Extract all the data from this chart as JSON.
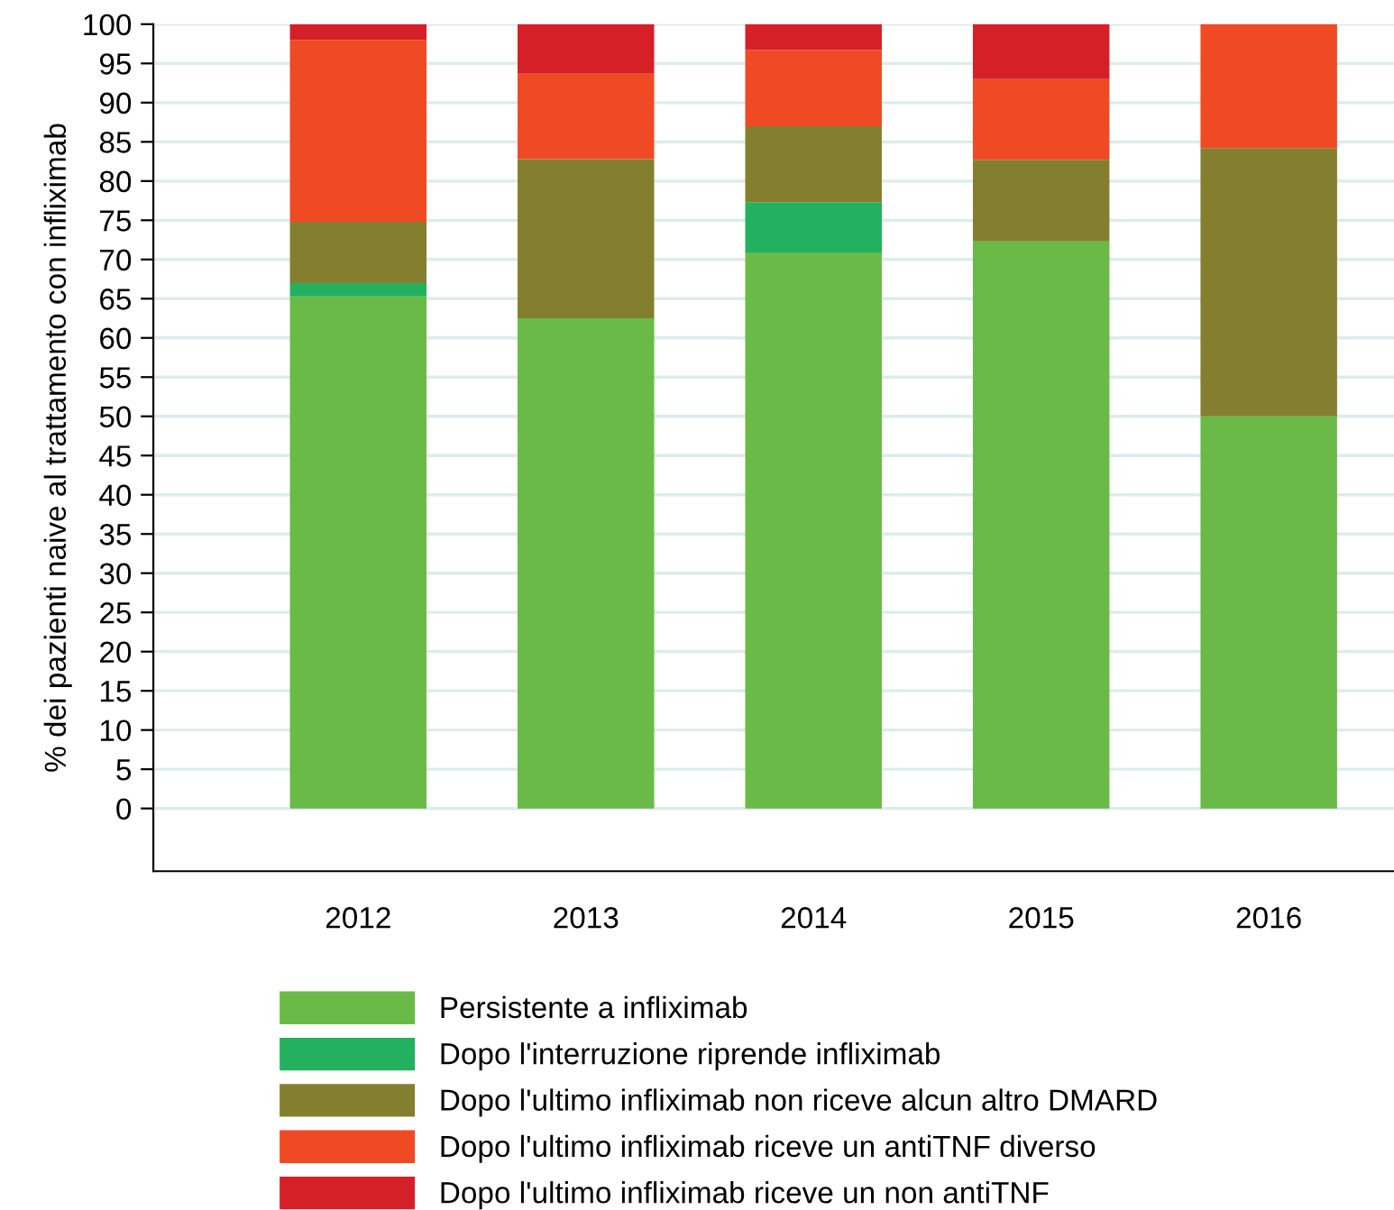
{
  "chart_data": {
    "type": "bar",
    "stacked": true,
    "ylabel": "% dei pazienti naive al trattamento con infliximab",
    "categories": [
      "2012",
      "2013",
      "2014",
      "2015",
      "2016"
    ],
    "series": [
      {
        "name": "Persistente a infliximab",
        "color": "#6aba47",
        "values": [
          65.3,
          62.5,
          70.9,
          72.3,
          50
        ]
      },
      {
        "name": "Dopo l'interruzione riprende infliximab",
        "color": "#23b15f",
        "values": [
          1.7,
          0,
          6.4,
          0,
          0
        ]
      },
      {
        "name": "Dopo l'ultimo infliximab non riceve alcun altro DMARD",
        "color": "#847f2f",
        "values": [
          7.8,
          20.3,
          9.7,
          10.4,
          34.2
        ]
      },
      {
        "name": "Dopo l'ultimo infliximab riceve un antiTNF diverso",
        "color": "#ef4a24",
        "values": [
          23.2,
          10.9,
          9.7,
          10.3,
          15.8
        ]
      },
      {
        "name": "Dopo l'ultimo infliximab riceve un non antiTNF",
        "color": "#d62028",
        "values": [
          2,
          6.3,
          3.3,
          7,
          0
        ]
      }
    ],
    "ylim": [
      -8,
      100
    ],
    "yticks": [
      0,
      5,
      10,
      15,
      20,
      25,
      30,
      35,
      40,
      45,
      50,
      55,
      60,
      65,
      70,
      75,
      80,
      85,
      90,
      95,
      100
    ],
    "grid": "y",
    "legend": "bottom"
  }
}
